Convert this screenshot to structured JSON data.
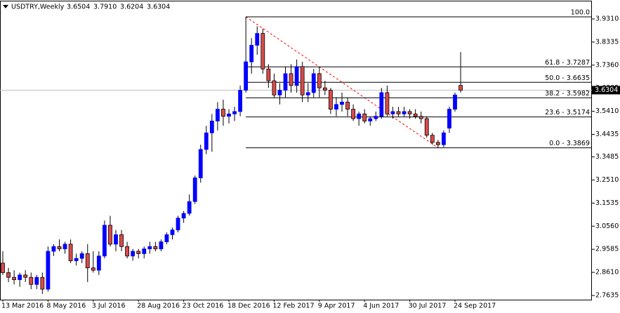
{
  "chart_data": {
    "type": "candlestick",
    "title": "USDTRY,Weekly",
    "header_ohlc": [
      "3.6504",
      "3.7910",
      "3.6204",
      "3.6304"
    ],
    "categories": [
      "13 Mar 2016",
      null,
      null,
      null,
      null,
      null,
      null,
      null,
      "8 May 2016",
      null,
      null,
      null,
      null,
      null,
      null,
      null,
      "3 Jul 2016",
      null,
      null,
      null,
      null,
      null,
      null,
      null,
      "28 Aug 2016",
      null,
      null,
      null,
      null,
      null,
      null,
      null,
      "23 Oct 2016",
      null,
      null,
      null,
      null,
      null,
      null,
      null,
      "18 Dec 2016",
      null,
      null,
      null,
      null,
      null,
      null,
      null,
      "12 Feb 2017",
      null,
      null,
      null,
      null,
      null,
      null,
      null,
      "9 Apr 2017",
      null,
      null,
      null,
      null,
      null,
      null,
      null,
      "4 Jun 2017",
      null,
      null,
      null,
      null,
      null,
      null,
      null,
      "30 Jul 2017",
      null,
      null,
      null,
      null,
      null,
      null,
      null,
      "24 Sep 2017",
      null
    ],
    "open": [
      2.9,
      2.86,
      2.84,
      2.83,
      2.85,
      2.84,
      2.81,
      2.84,
      2.79,
      2.95,
      2.97,
      2.96,
      2.98,
      2.91,
      2.92,
      2.94,
      2.88,
      2.87,
      2.93,
      3.06,
      2.98,
      3.02,
      2.97,
      2.93,
      2.95,
      2.94,
      2.96,
      2.97,
      2.96,
      2.99,
      3.02,
      3.04,
      3.09,
      3.11,
      3.16,
      3.26,
      3.38,
      3.45,
      3.5,
      3.55,
      3.52,
      3.53,
      3.54,
      3.63,
      3.75,
      3.82,
      3.87,
      3.72,
      3.67,
      3.61,
      3.63,
      3.7,
      3.65,
      3.73,
      3.61,
      3.62,
      3.7,
      3.64,
      3.63,
      3.55,
      3.57,
      3.58,
      3.55,
      3.51,
      3.53,
      3.5,
      3.51,
      3.52,
      3.62,
      3.53,
      3.54,
      3.53,
      3.54,
      3.53,
      3.52,
      3.51,
      3.44,
      3.41,
      3.4,
      3.47,
      3.55,
      3.6504
    ],
    "high": [
      2.95,
      2.88,
      2.87,
      2.86,
      2.87,
      2.86,
      2.85,
      2.86,
      2.97,
      2.98,
      3.0,
      2.99,
      3.0,
      2.94,
      2.95,
      2.98,
      2.95,
      2.95,
      3.08,
      3.1,
      3.04,
      3.04,
      2.99,
      2.96,
      2.96,
      2.97,
      2.99,
      2.99,
      3.0,
      3.03,
      3.05,
      3.1,
      3.12,
      3.19,
      3.27,
      3.4,
      3.48,
      3.53,
      3.58,
      3.59,
      3.55,
      3.56,
      3.65,
      3.94,
      3.85,
      3.9,
      3.89,
      3.74,
      3.7,
      3.66,
      3.73,
      3.74,
      3.76,
      3.75,
      3.66,
      3.72,
      3.73,
      3.67,
      3.64,
      3.6,
      3.62,
      3.6,
      3.57,
      3.54,
      3.55,
      3.52,
      3.54,
      3.64,
      3.65,
      3.56,
      3.56,
      3.56,
      3.55,
      3.55,
      3.54,
      3.52,
      3.45,
      3.42,
      3.46,
      3.56,
      3.62,
      3.791
    ],
    "low": [
      2.85,
      2.82,
      2.81,
      2.8,
      2.82,
      2.79,
      2.79,
      2.77,
      2.78,
      2.93,
      2.95,
      2.94,
      2.9,
      2.89,
      2.9,
      2.82,
      2.86,
      2.85,
      2.92,
      2.97,
      2.95,
      2.95,
      2.92,
      2.91,
      2.92,
      2.92,
      2.94,
      2.95,
      2.95,
      2.98,
      3.0,
      3.03,
      3.07,
      3.1,
      3.15,
      3.24,
      3.36,
      3.37,
      3.46,
      3.48,
      3.49,
      3.5,
      3.52,
      3.62,
      3.7,
      3.78,
      3.7,
      3.64,
      3.6,
      3.57,
      3.6,
      3.62,
      3.62,
      3.58,
      3.58,
      3.6,
      3.6,
      3.61,
      3.53,
      3.52,
      3.54,
      3.52,
      3.5,
      3.48,
      3.49,
      3.48,
      3.5,
      3.51,
      3.52,
      3.51,
      3.52,
      3.52,
      3.51,
      3.51,
      3.49,
      3.43,
      3.4,
      3.3869,
      3.39,
      3.45,
      3.54,
      3.6204
    ],
    "close": [
      2.86,
      2.84,
      2.83,
      2.85,
      2.84,
      2.81,
      2.84,
      2.79,
      2.95,
      2.97,
      2.96,
      2.98,
      2.91,
      2.92,
      2.94,
      2.88,
      2.87,
      2.93,
      3.06,
      2.98,
      3.02,
      2.97,
      2.93,
      2.95,
      2.94,
      2.96,
      2.97,
      2.96,
      2.99,
      3.02,
      3.04,
      3.09,
      3.11,
      3.16,
      3.26,
      3.38,
      3.45,
      3.5,
      3.55,
      3.52,
      3.53,
      3.54,
      3.63,
      3.75,
      3.82,
      3.87,
      3.72,
      3.67,
      3.61,
      3.63,
      3.7,
      3.65,
      3.73,
      3.61,
      3.62,
      3.7,
      3.64,
      3.63,
      3.55,
      3.57,
      3.58,
      3.55,
      3.51,
      3.53,
      3.5,
      3.51,
      3.52,
      3.62,
      3.53,
      3.54,
      3.53,
      3.54,
      3.53,
      3.52,
      3.51,
      3.44,
      3.41,
      3.4,
      3.45,
      3.55,
      3.61,
      3.6304
    ],
    "up_color": "#0000ff",
    "down_color": "#dd4a4a",
    "ylim": [
      2.7457,
      4.0051
    ],
    "yticks": [
      {
        "value": 3.931,
        "label": "3.9310"
      },
      3.8335,
      {
        "value": 3.736,
        "label": "3.7360"
      },
      3.6385,
      {
        "value": 3.541,
        "label": "3.5410"
      },
      3.4435,
      3.3485,
      {
        "value": 3.251,
        "label": "3.2510"
      },
      3.1535,
      {
        "value": 3.056,
        "label": "3.0560"
      },
      2.9585,
      {
        "value": 2.861,
        "label": "2.8610"
      },
      2.7635
    ],
    "current_price": 3.6304,
    "fibonacci": {
      "color": "#000000",
      "trend_color": "#ff0000",
      "levels": [
        {
          "value": 3.94,
          "label": "100.0"
        },
        {
          "value": 3.7287,
          "label": "61.8 - 3.7287"
        },
        {
          "value": 3.6635,
          "label": "50.0 - 3.6635"
        },
        {
          "value": 3.5982,
          "label": "38.2 - 3.5982"
        },
        {
          "value": 3.5174,
          "label": "23.6 - 3.5174"
        },
        {
          "value": 3.3869,
          "label": "0.0 - 3.3869"
        }
      ]
    }
  }
}
